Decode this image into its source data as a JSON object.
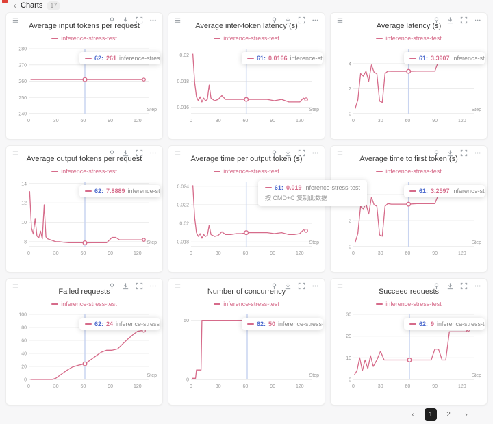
{
  "header": {
    "back_icon": "‹",
    "title": "Charts",
    "badge": "17"
  },
  "colors": {
    "accent": "#d66b8a",
    "blue": "#4d6bce",
    "crosshair": "#c9d4f0",
    "grid": "#ececec",
    "axis_text": "#999999",
    "page_bg": "#f7f7f8"
  },
  "tooltip_hint": "按 CMD+C 复制此数据",
  "toolbar_icons": [
    "drag-handle",
    "pin",
    "download",
    "fullscreen",
    "more"
  ],
  "pagination": {
    "prev": "‹",
    "pages": [
      "1",
      "2"
    ],
    "active": "1",
    "next": "›"
  },
  "charts": [
    {
      "title": "Average input tokens per request",
      "legend": "inference-stress-test",
      "tooltip": {
        "step": "62:",
        "value": "261",
        "name": "inference-stress-test"
      },
      "chart_data": {
        "type": "line",
        "series_name": "inference-stress-test",
        "xlabel": "Step",
        "xlim": [
          0,
          133
        ],
        "x_ticks": [
          0,
          30,
          60,
          90,
          120
        ],
        "ylim": [
          240,
          280
        ],
        "y_ticks": [
          240,
          250,
          260,
          270,
          280
        ],
        "y_tick_labels": [
          "240",
          "250",
          "260",
          "270",
          "280"
        ],
        "marker": {
          "x": 62,
          "y": 261
        },
        "x": [
          2,
          20,
          40,
          62,
          80,
          100,
          120,
          127
        ],
        "y": [
          261,
          261,
          261,
          261,
          261,
          261,
          261,
          261
        ]
      }
    },
    {
      "title": "Average inter-token latency (s)",
      "legend": "inference-stress-test",
      "tooltip": {
        "step": "61:",
        "value": "0.0166",
        "name": "inference-stress-test"
      },
      "chart_data": {
        "type": "line",
        "series_name": "inference-stress-test",
        "xlabel": "Step",
        "xlim": [
          0,
          133
        ],
        "x_ticks": [
          0,
          30,
          60,
          90,
          120
        ],
        "ylim": [
          0.0155,
          0.0205
        ],
        "y_ticks": [
          0.016,
          0.018,
          0.02
        ],
        "y_tick_labels": [
          "0.016",
          "0.018",
          "0.02"
        ],
        "marker": {
          "x": 61,
          "y": 0.0166
        },
        "x": [
          2,
          4,
          6,
          8,
          10,
          12,
          14,
          16,
          18,
          20,
          22,
          26,
          30,
          34,
          38,
          44,
          50,
          56,
          61,
          68,
          76,
          84,
          92,
          100,
          108,
          114,
          120,
          124,
          127
        ],
        "y": [
          0.0201,
          0.0179,
          0.0168,
          0.0165,
          0.0168,
          0.0164,
          0.0167,
          0.0165,
          0.0166,
          0.0177,
          0.0167,
          0.0165,
          0.0166,
          0.0169,
          0.0166,
          0.0166,
          0.0166,
          0.0166,
          0.0166,
          0.0166,
          0.0166,
          0.0166,
          0.0165,
          0.0166,
          0.0164,
          0.0164,
          0.0164,
          0.0167,
          0.0166
        ]
      }
    },
    {
      "title": "Average latency (s)",
      "legend": "inference-stress-test",
      "tooltip": {
        "step": "61:",
        "value": "3.3907",
        "name": "inference-stress-test"
      },
      "chart_data": {
        "type": "line",
        "series_name": "inference-stress-test",
        "xlabel": "Step",
        "xlim": [
          0,
          133
        ],
        "x_ticks": [
          0,
          30,
          60,
          90,
          120
        ],
        "ylim": [
          0,
          5.2
        ],
        "y_ticks": [
          0,
          2,
          4
        ],
        "y_tick_labels": [
          "0",
          "2",
          "4"
        ],
        "marker": {
          "x": 61,
          "y": 3.3907
        },
        "x": [
          2,
          5,
          8,
          11,
          14,
          17,
          20,
          23,
          26,
          29,
          32,
          35,
          38,
          42,
          48,
          54,
          61,
          70,
          80,
          90,
          94,
          98,
          104,
          110,
          116,
          120,
          123,
          127
        ],
        "y": [
          0.4,
          1.1,
          3.2,
          3.0,
          3.4,
          2.6,
          3.9,
          3.3,
          3.2,
          1.0,
          0.9,
          3.2,
          3.4,
          3.39,
          3.39,
          3.39,
          3.3907,
          3.4,
          3.4,
          3.4,
          4.2,
          4.2,
          4.2,
          4.2,
          4.2,
          4.3,
          4.7,
          4.7
        ]
      }
    },
    {
      "title": "Average output tokens per request",
      "legend": "inference-stress-test",
      "tooltip": {
        "step": "62:",
        "value": "7.8889",
        "name": "inference-stress-test"
      },
      "chart_data": {
        "type": "line",
        "series_name": "inference-stress-test",
        "xlabel": "Step",
        "xlim": [
          0,
          133
        ],
        "x_ticks": [
          0,
          30,
          60,
          90,
          120
        ],
        "ylim": [
          7.5,
          14.2
        ],
        "y_ticks": [
          8,
          10,
          12,
          14
        ],
        "y_tick_labels": [
          "8",
          "10",
          "12",
          "14"
        ],
        "marker": {
          "x": 62,
          "y": 7.8889
        },
        "x": [
          1,
          3,
          5,
          7,
          9,
          11,
          13,
          15,
          17,
          19,
          21,
          24,
          27,
          30,
          34,
          38,
          44,
          50,
          56,
          62,
          70,
          78,
          86,
          92,
          96,
          100,
          106,
          112,
          118,
          123,
          127
        ],
        "y": [
          13.2,
          9.4,
          8.8,
          10.4,
          8.6,
          8.4,
          9.1,
          8.3,
          11.8,
          8.5,
          8.3,
          8.2,
          8.1,
          8.0,
          8.0,
          7.95,
          7.9,
          7.9,
          7.9,
          7.8889,
          7.9,
          7.9,
          7.9,
          8.45,
          8.45,
          8.2,
          8.2,
          8.2,
          8.2,
          8.2,
          8.2
        ]
      }
    },
    {
      "title": "Average time per output token (s)",
      "legend": "inference-stress-test",
      "tooltip": {
        "step": "61:",
        "value": "0.019",
        "name": "inference-stress-test"
      },
      "chart_data": {
        "type": "line",
        "series_name": "inference-stress-test",
        "xlabel": "Step",
        "xlim": [
          0,
          133
        ],
        "x_ticks": [
          0,
          30,
          60,
          90,
          120
        ],
        "ylim": [
          0.0175,
          0.0245
        ],
        "y_ticks": [
          0.018,
          0.02,
          0.022,
          0.024
        ],
        "y_tick_labels": [
          "0.018",
          "0.02",
          "0.022",
          "0.024"
        ],
        "marker": {
          "x": 61,
          "y": 0.019
        },
        "x": [
          2,
          4,
          6,
          8,
          10,
          12,
          14,
          16,
          18,
          20,
          22,
          26,
          30,
          34,
          38,
          44,
          50,
          56,
          61,
          68,
          76,
          84,
          92,
          100,
          108,
          114,
          120,
          124,
          127
        ],
        "y": [
          0.0241,
          0.0206,
          0.019,
          0.0186,
          0.0189,
          0.0184,
          0.0188,
          0.0186,
          0.0187,
          0.0198,
          0.0188,
          0.0186,
          0.0187,
          0.0191,
          0.0188,
          0.0188,
          0.0189,
          0.0189,
          0.019,
          0.019,
          0.019,
          0.019,
          0.0189,
          0.019,
          0.0188,
          0.0188,
          0.0189,
          0.0193,
          0.0192
        ]
      }
    },
    {
      "title": "Average time to first token (s)",
      "legend": "inference-stress-test",
      "tooltip": {
        "step": "61:",
        "value": "3.2597",
        "name": "inference-stress-test"
      },
      "chart_data": {
        "type": "line",
        "series_name": "inference-stress-test",
        "xlabel": "Step",
        "xlim": [
          0,
          133
        ],
        "x_ticks": [
          0,
          30,
          60,
          90,
          120
        ],
        "ylim": [
          0,
          5
        ],
        "y_ticks": [
          0,
          2,
          4
        ],
        "y_tick_labels": [
          "0",
          "2",
          "4"
        ],
        "marker": {
          "x": 61,
          "y": 3.2597
        },
        "x": [
          2,
          5,
          8,
          11,
          14,
          17,
          20,
          23,
          26,
          29,
          32,
          35,
          38,
          42,
          48,
          54,
          61,
          70,
          80,
          90,
          94,
          98,
          104,
          110,
          116,
          120,
          123,
          127
        ],
        "y": [
          0.3,
          1.0,
          3.1,
          2.9,
          3.3,
          2.5,
          3.8,
          3.2,
          3.1,
          0.9,
          0.8,
          3.1,
          3.3,
          3.26,
          3.26,
          3.26,
          3.2597,
          3.3,
          3.3,
          3.3,
          4.0,
          4.0,
          4.0,
          4.0,
          4.0,
          4.1,
          4.5,
          4.5
        ]
      }
    },
    {
      "title": "Failed requests",
      "legend": "inference-stress-test",
      "tooltip": {
        "step": "62:",
        "value": "24",
        "name": "inference-stress-test"
      },
      "chart_data": {
        "type": "line",
        "series_name": "inference-stress-test",
        "xlabel": "Step",
        "xlim": [
          0,
          133
        ],
        "x_ticks": [
          0,
          30,
          60,
          90,
          120
        ],
        "ylim": [
          0,
          100
        ],
        "y_ticks": [
          0,
          20,
          40,
          60,
          80,
          100
        ],
        "y_tick_labels": [
          "0",
          "20",
          "40",
          "60",
          "80",
          "100"
        ],
        "marker": {
          "x": 62,
          "y": 24
        },
        "x": [
          2,
          10,
          18,
          26,
          30,
          36,
          42,
          48,
          55,
          62,
          68,
          74,
          80,
          86,
          92,
          98,
          104,
          110,
          116,
          120,
          124,
          127
        ],
        "y": [
          0,
          0,
          0,
          0,
          2,
          8,
          14,
          19,
          22,
          24,
          30,
          36,
          42,
          45,
          45,
          47,
          55,
          63,
          70,
          74,
          75,
          75
        ]
      }
    },
    {
      "title": "Number of concurrency",
      "legend": "inference-stress-test",
      "tooltip": {
        "step": "62:",
        "value": "50",
        "name": "inference-stress-test"
      },
      "chart_data": {
        "type": "line",
        "series_name": "inference-stress-test",
        "xlabel": "Step",
        "xlim": [
          0,
          133
        ],
        "x_ticks": [
          0,
          30,
          60,
          90,
          120
        ],
        "ylim": [
          0,
          55
        ],
        "y_ticks": [
          0,
          50
        ],
        "y_tick_labels": [
          "0",
          "50"
        ],
        "marker": {
          "x": 62,
          "y": 50
        },
        "x": [
          1,
          5,
          6,
          11,
          12,
          30,
          62,
          90,
          120,
          127
        ],
        "y": [
          1,
          1,
          8,
          8,
          50,
          50,
          50,
          50,
          50,
          50
        ]
      }
    },
    {
      "title": "Succeed requests",
      "legend": "inference-stress-test",
      "tooltip": {
        "step": "62:",
        "value": "9",
        "name": "inference-stress-test"
      },
      "chart_data": {
        "type": "line",
        "series_name": "inference-stress-test",
        "xlabel": "Step",
        "xlim": [
          0,
          133
        ],
        "x_ticks": [
          0,
          30,
          60,
          90,
          120
        ],
        "ylim": [
          0,
          30
        ],
        "y_ticks": [
          0,
          10,
          20,
          30
        ],
        "y_tick_labels": [
          "0",
          "10",
          "20",
          "30"
        ],
        "marker": {
          "x": 62,
          "y": 9
        },
        "x": [
          1,
          4,
          7,
          10,
          13,
          16,
          19,
          22,
          26,
          30,
          34,
          40,
          46,
          54,
          62,
          70,
          78,
          86,
          90,
          94,
          98,
          102,
          106,
          110,
          114,
          120,
          124,
          127
        ],
        "y": [
          2,
          4,
          10,
          4,
          9,
          5,
          11,
          6,
          9,
          13,
          9,
          9,
          9,
          9,
          9,
          9,
          9,
          9,
          14,
          14,
          9,
          9,
          22,
          22,
          22,
          22,
          22,
          23
        ]
      }
    }
  ]
}
